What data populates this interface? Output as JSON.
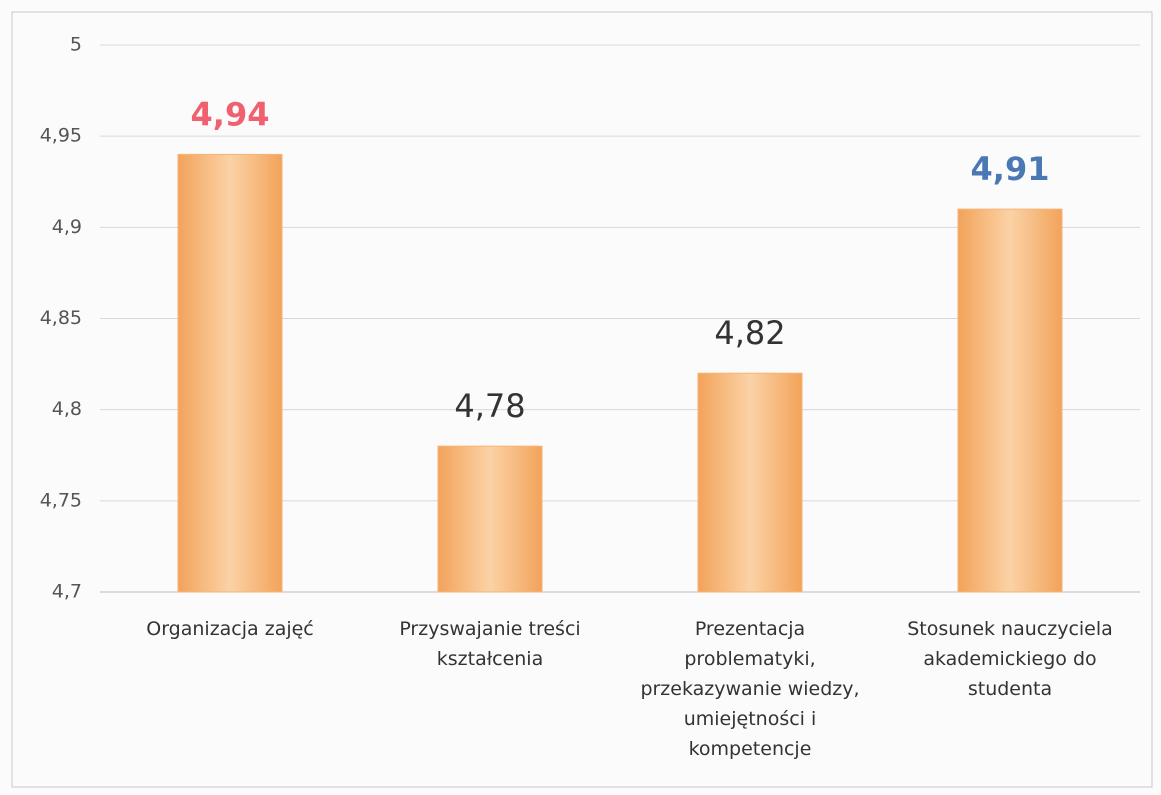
{
  "chart_data": {
    "type": "bar",
    "categories": [
      "Organizacja zajęć",
      "Przyswajanie treści\nkształcenia",
      "Prezentacja\nproblematyki,\nprzekazywanie wiedzy,\numiejętności i\nkompetencje",
      "Stosunek nauczyciela\nakademickiego do\nstudenta"
    ],
    "values": [
      4.94,
      4.78,
      4.82,
      4.91
    ],
    "value_labels": [
      "4,94",
      "4,78",
      "4,82",
      "4,91"
    ],
    "value_label_colors": [
      "#f0606e",
      "#333333",
      "#333333",
      "#4a78b4"
    ],
    "color": "#f6b575",
    "ylim": [
      4.7,
      5
    ],
    "yticks": [
      {
        "value": 4.7,
        "label": "4,7"
      },
      {
        "value": 4.75,
        "label": "4,75"
      },
      {
        "value": 4.8,
        "label": "4,8"
      },
      {
        "value": 4.85,
        "label": "4,85"
      },
      {
        "value": 4.9,
        "label": "4,9"
      },
      {
        "value": 4.95,
        "label": "4,95"
      },
      5
    ],
    "grid": true
  }
}
